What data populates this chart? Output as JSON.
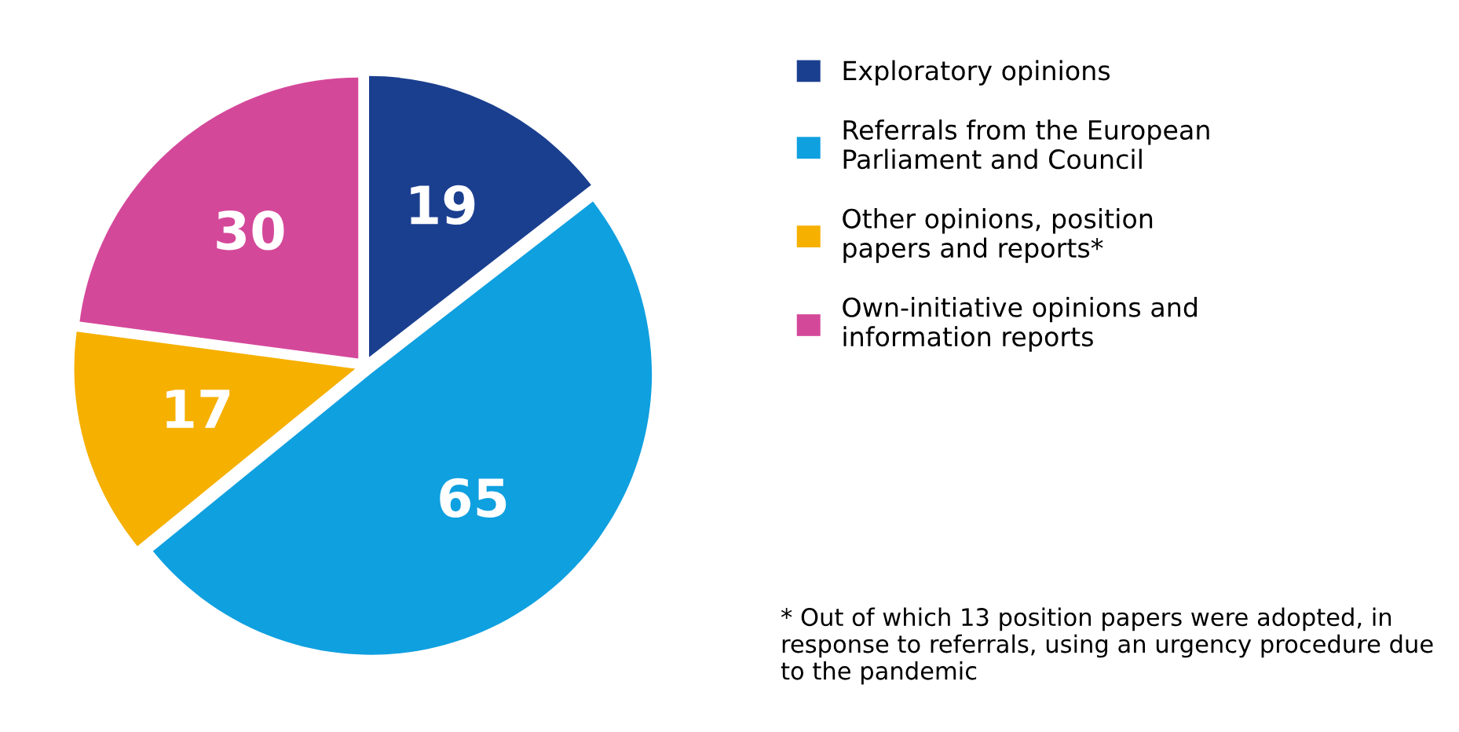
{
  "chart_data": {
    "type": "pie",
    "categories": [
      "Exploratory opinions",
      "Referrals from the European Parliament and Council",
      "Other opinions, position papers and reports*",
      "Own-initiative opinions and information reports"
    ],
    "values": [
      19,
      65,
      17,
      30
    ],
    "colors": [
      "#1b3f8f",
      "#0fa0e0",
      "#f6b000",
      "#d4489a"
    ],
    "data_labels": true,
    "legend": "right",
    "annotations": [
      "* Out of which 13 position papers were adopted, in response to referrals, using an urgency procedure due to the pandemic"
    ]
  }
}
